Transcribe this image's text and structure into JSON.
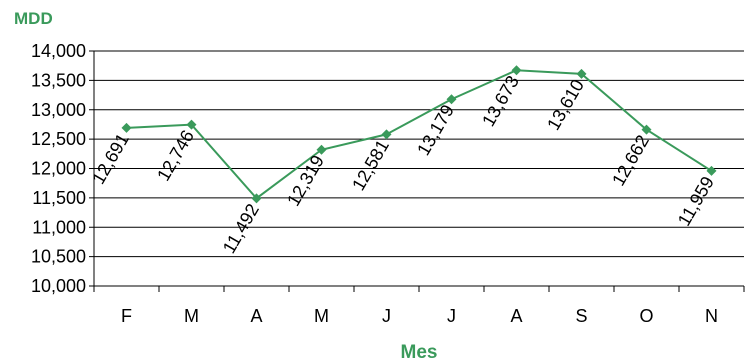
{
  "colors": {
    "series": "#3a9a5b",
    "title": "#3a9a5b",
    "grid": "#000000"
  },
  "chart_data": {
    "type": "line",
    "ylabel": "MDD",
    "xlabel": "Mes",
    "categories": [
      "F",
      "M",
      "A",
      "M",
      "J",
      "J",
      "A",
      "S",
      "O",
      "N"
    ],
    "values": [
      12691,
      12746,
      11492,
      12319,
      12581,
      13179,
      13673,
      13610,
      12662,
      11959
    ],
    "data_labels": [
      "12,691",
      "12,746",
      "11,492",
      "12,319",
      "12,581",
      "13,179",
      "13,673",
      "13,610",
      "12,662",
      "11,959"
    ],
    "yticks": [
      10000,
      10500,
      11000,
      11500,
      12000,
      12500,
      13000,
      13500,
      14000
    ],
    "ytick_labels": [
      "10,000",
      "10,500",
      "11,000",
      "11,500",
      "12,000",
      "12,500",
      "13,000",
      "13,500",
      "14,000"
    ],
    "ylim": [
      10000,
      14000
    ],
    "grid": true,
    "marker": "diamond"
  }
}
